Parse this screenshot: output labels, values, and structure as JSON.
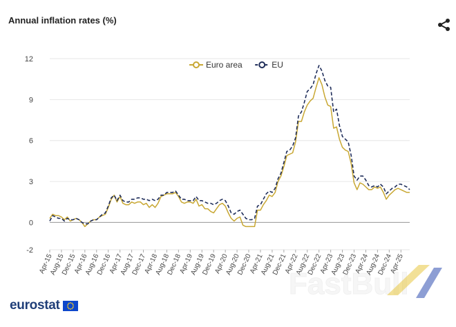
{
  "header": {
    "title": "Annual inflation rates (%)",
    "share_icon": "share-icon"
  },
  "brand": {
    "name": "eurostat",
    "flag_icon": "eu-flag-icon",
    "watermark": "FastBull"
  },
  "colors": {
    "euro_area": "#c8a732",
    "eu": "#1f2d5a",
    "grid": "#e6e6e6",
    "axis": "#999999"
  },
  "chart_data": {
    "type": "line",
    "title": "Annual inflation rates (%)",
    "xlabel": "",
    "ylabel": "",
    "ylim": [
      -2,
      12
    ],
    "yticks": [
      -2,
      0,
      3,
      6,
      9,
      12
    ],
    "ytick_labels": [
      "-2",
      "0",
      "3",
      "6",
      "9",
      "12"
    ],
    "xtick_labels": [
      "Apr-15",
      "Aug-15",
      "Dec-15",
      "Apr-16",
      "Aug-16",
      "Dec-16",
      "Apr-17",
      "Aug-17",
      "Dec-17",
      "Apr-18",
      "Aug-18",
      "Dec-18",
      "Apr-19",
      "Aug-19",
      "Dec-19",
      "Apr-20",
      "Aug-20",
      "Dec-20",
      "Apr-21",
      "Aug-21",
      "Dec-21",
      "Apr-22",
      "Aug-22",
      "Dec-22",
      "Apr-23",
      "Aug-23",
      "Dec-23",
      "Apr-24",
      "Aug-24",
      "Dec-24",
      "Apr-25"
    ],
    "legend_position": "top-center",
    "grid": true,
    "x_start": "Apr-15",
    "series": [
      {
        "name": "Euro area",
        "style": "solid",
        "values": [
          0.3,
          0.6,
          0.5,
          0.5,
          0.4,
          0.2,
          0.4,
          0.1,
          0.2,
          0.3,
          0.2,
          0.0,
          -0.3,
          -0.1,
          0.1,
          0.2,
          0.2,
          0.4,
          0.5,
          0.6,
          1.1,
          1.7,
          2.0,
          1.5,
          1.9,
          1.4,
          1.3,
          1.3,
          1.5,
          1.4,
          1.5,
          1.5,
          1.3,
          1.4,
          1.1,
          1.3,
          1.1,
          1.4,
          1.9,
          2.0,
          2.1,
          2.1,
          2.1,
          2.2,
          1.9,
          1.5,
          1.4,
          1.5,
          1.5,
          1.4,
          1.7,
          1.2,
          1.3,
          1.0,
          1.0,
          0.8,
          0.7,
          1.0,
          1.3,
          1.4,
          1.2,
          0.7,
          0.3,
          0.1,
          0.3,
          0.4,
          -0.2,
          -0.3,
          -0.3,
          -0.3,
          -0.3,
          0.9,
          0.9,
          1.3,
          1.6,
          2.0,
          1.9,
          2.2,
          3.0,
          3.4,
          4.1,
          4.9,
          5.0,
          5.1,
          5.9,
          7.4,
          7.4,
          8.1,
          8.6,
          8.9,
          9.1,
          9.9,
          10.6,
          10.1,
          9.2,
          8.6,
          8.5,
          6.9,
          7.0,
          6.1,
          5.5,
          5.3,
          5.2,
          4.3,
          2.9,
          2.4,
          2.9,
          2.8,
          2.6,
          2.4,
          2.4,
          2.6,
          2.5,
          2.6,
          2.2,
          1.7,
          2.0,
          2.2,
          2.4,
          2.5,
          2.4,
          2.3,
          2.2,
          2.2
        ]
      },
      {
        "name": "EU",
        "style": "dashed",
        "values": [
          0.1,
          0.5,
          0.4,
          0.3,
          0.3,
          0.1,
          0.3,
          0.2,
          0.2,
          0.3,
          0.2,
          0.0,
          -0.1,
          -0.1,
          0.1,
          0.2,
          0.2,
          0.4,
          0.6,
          0.7,
          1.2,
          1.8,
          2.0,
          1.6,
          2.0,
          1.6,
          1.5,
          1.5,
          1.7,
          1.7,
          1.8,
          1.8,
          1.7,
          1.7,
          1.6,
          1.7,
          1.6,
          1.7,
          2.0,
          2.0,
          2.2,
          2.2,
          2.2,
          2.3,
          2.0,
          1.7,
          1.7,
          1.6,
          1.6,
          1.6,
          1.9,
          1.6,
          1.6,
          1.5,
          1.4,
          1.4,
          1.3,
          1.4,
          1.6,
          1.7,
          1.6,
          1.2,
          0.7,
          0.6,
          0.8,
          0.9,
          0.6,
          0.3,
          0.2,
          0.2,
          0.3,
          1.2,
          1.3,
          1.7,
          2.1,
          2.3,
          2.2,
          2.5,
          3.2,
          3.6,
          4.4,
          5.2,
          5.3,
          5.6,
          6.2,
          7.8,
          8.1,
          8.8,
          9.6,
          9.8,
          10.1,
          10.9,
          11.5,
          11.1,
          10.4,
          10.0,
          9.9,
          8.1,
          8.3,
          7.1,
          6.3,
          6.1,
          5.9,
          4.9,
          3.4,
          3.1,
          3.4,
          3.4,
          3.1,
          2.7,
          2.6,
          2.7,
          2.6,
          2.8,
          2.6,
          2.1,
          2.3,
          2.5,
          2.6,
          2.8,
          2.8,
          2.7,
          2.6,
          2.4
        ]
      }
    ]
  }
}
